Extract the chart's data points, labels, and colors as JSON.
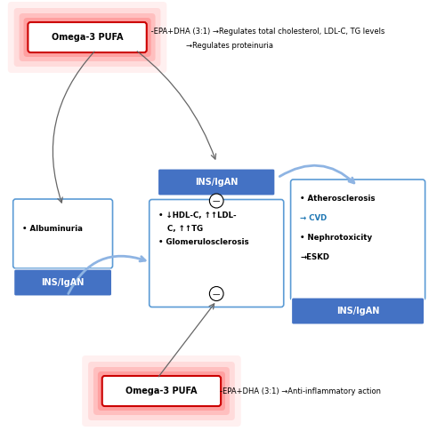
{
  "fig_width": 5.0,
  "fig_height": 4.94,
  "dpi": 100,
  "background": "#ffffff",
  "blue_box_color": "#4472C4",
  "white_box_border_color": "#5B9BD5",
  "omega_box_border_color": "#cc0000",
  "omega_box_glow_color": "#ff4444",
  "top_omega_text": "Omega-3 PUFA",
  "top_epa_text": " -EPA+DHA (3:1) →Regulates total cholesterol, LDL-C, TG levels",
  "top_line2_text": "→Regulates proteinuria",
  "bottom_omega_text": "Omega-3 PUFA",
  "bottom_epa_text": "-EPA+DHA (3:1) →Anti-inflammatory action",
  "ins_igan_label": "INS/IgAN",
  "left_bullet": "• Albuminuria",
  "center_line1": "• ↓HDL-C, ↑↑LDL-",
  "center_line2": "C, ↑↑TG",
  "center_line3": "• Glomerulosclerosis",
  "right_line1": "• Atherosclerosis",
  "right_line2": "→ CVD",
  "right_line3": "• Nephrotoxicity",
  "right_line4": "→ESKD",
  "arrow_color_dark": "#666666",
  "arrow_color_blue": "#8EB4E3",
  "font_size_label": 7,
  "font_size_bullet": 6.2,
  "font_size_omega": 7,
  "font_size_epa": 6.0
}
